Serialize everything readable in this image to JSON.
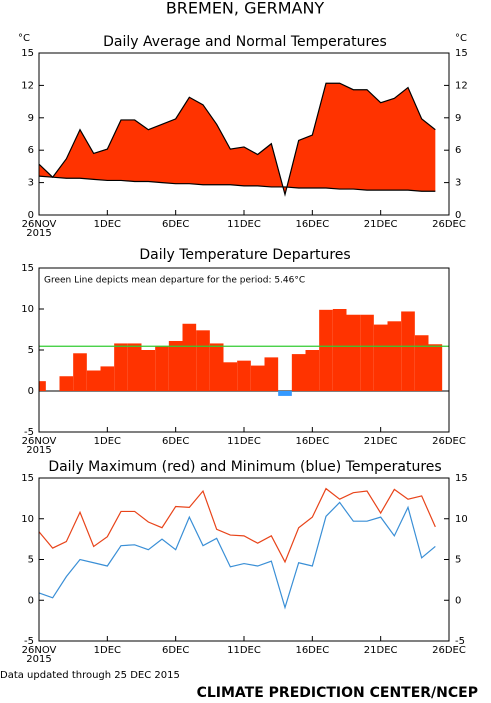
{
  "page_title": "BREMEN, GERMANY",
  "chart_data": [
    {
      "type": "area",
      "title": "Daily Average and Normal Temperatures",
      "ylabel": "°C",
      "y2label": "°C",
      "fill_color": "#ff3300",
      "year": "2015",
      "xlim": [
        0,
        30
      ],
      "xticks": [
        {
          "value": 0,
          "label": "26NOV"
        },
        {
          "value": 5,
          "label": "1DEC"
        },
        {
          "value": 10,
          "label": "6DEC"
        },
        {
          "value": 15,
          "label": "11DEC"
        },
        {
          "value": 20,
          "label": "16DEC"
        },
        {
          "value": 25,
          "label": "21DEC"
        },
        {
          "value": 30,
          "label": "26DEC"
        }
      ],
      "ylim": [
        0,
        15
      ],
      "yticks": [
        0,
        3,
        6,
        9,
        12,
        15
      ],
      "y2lim": [
        0,
        15
      ],
      "y2ticks": [
        0,
        3,
        6,
        9,
        12,
        15
      ],
      "series": [
        {
          "color": "#000000",
          "values": [
            4.7,
            3.5,
            5.2,
            7.9,
            5.7,
            6.1,
            8.8,
            8.8,
            7.9,
            8.4,
            8.9,
            10.9,
            10.2,
            8.4,
            6.1,
            6.3,
            5.6,
            6.6,
            1.9,
            6.9,
            7.4,
            12.2,
            12.2,
            11.6,
            11.6,
            10.4,
            10.8,
            11.8,
            8.9,
            7.9
          ]
        },
        {
          "color": "#000000",
          "values": [
            3.6,
            3.5,
            3.4,
            3.4,
            3.3,
            3.2,
            3.2,
            3.1,
            3.1,
            3.0,
            2.9,
            2.9,
            2.8,
            2.8,
            2.8,
            2.7,
            2.7,
            2.6,
            2.6,
            2.5,
            2.5,
            2.5,
            2.4,
            2.4,
            2.3,
            2.3,
            2.3,
            2.3,
            2.2,
            2.2
          ]
        }
      ]
    },
    {
      "type": "bar",
      "title": "Daily Temperature Departures",
      "year": "2015",
      "annotation": "Green Line depicts mean departure for the period: 5.46°C",
      "mean": 5.46,
      "mean_color": "#33cc33",
      "color": "#ff3300",
      "negative_color": "#3399ff",
      "xlim": [
        0,
        30
      ],
      "xticks": [
        {
          "value": 0,
          "label": "26NOV"
        },
        {
          "value": 5,
          "label": "1DEC"
        },
        {
          "value": 10,
          "label": "6DEC"
        },
        {
          "value": 15,
          "label": "11DEC"
        },
        {
          "value": 20,
          "label": "16DEC"
        },
        {
          "value": 25,
          "label": "21DEC"
        },
        {
          "value": 30,
          "label": "26DEC"
        }
      ],
      "ylim": [
        -5,
        15
      ],
      "yticks": [
        -5,
        0,
        5,
        10,
        15
      ],
      "values": [
        1.2,
        0,
        1.8,
        4.6,
        2.5,
        3.0,
        5.8,
        5.8,
        5.0,
        5.5,
        6.1,
        8.2,
        7.4,
        5.8,
        3.5,
        3.7,
        3.1,
        4.1,
        -0.6,
        4.5,
        5.0,
        9.9,
        10.0,
        9.3,
        9.3,
        8.1,
        8.5,
        9.7,
        6.8,
        5.7
      ]
    },
    {
      "type": "line",
      "title": "Daily Maximum (red) and Minimum (blue) Temperatures",
      "year": "2015",
      "xlim": [
        0,
        30
      ],
      "xticks": [
        {
          "value": 0,
          "label": "26NOV"
        },
        {
          "value": 5,
          "label": "1DEC"
        },
        {
          "value": 10,
          "label": "6DEC"
        },
        {
          "value": 15,
          "label": "11DEC"
        },
        {
          "value": 20,
          "label": "16DEC"
        },
        {
          "value": 25,
          "label": "21DEC"
        },
        {
          "value": 30,
          "label": "26DEC"
        }
      ],
      "ylim": [
        -5,
        15
      ],
      "yticks": [
        -5,
        0,
        5,
        10,
        15
      ],
      "y2lim": [
        -5,
        15
      ],
      "y2ticks": [
        -5,
        0,
        5,
        10,
        15
      ],
      "series": [
        {
          "color": "#e8441a",
          "values": [
            8.4,
            6.4,
            7.2,
            10.8,
            6.6,
            7.8,
            10.9,
            10.9,
            9.6,
            8.9,
            11.5,
            11.4,
            13.4,
            8.7,
            8.0,
            7.9,
            7.0,
            7.9,
            4.7,
            8.9,
            10.2,
            13.7,
            12.4,
            13.2,
            13.4,
            10.7,
            13.6,
            12.4,
            12.8,
            9.0
          ]
        },
        {
          "color": "#3a8fd6",
          "values": [
            0.9,
            0.3,
            2.9,
            5.0,
            4.6,
            4.2,
            6.7,
            6.8,
            6.2,
            7.5,
            6.2,
            10.2,
            6.7,
            7.6,
            4.1,
            4.5,
            4.2,
            4.8,
            -0.9,
            4.6,
            4.2,
            10.3,
            12.0,
            9.7,
            9.7,
            10.2,
            7.9,
            11.4,
            5.2,
            6.6
          ]
        }
      ]
    }
  ],
  "footer": {
    "note": "Data updated through 25 DEC 2015",
    "credit": "CLIMATE PREDICTION CENTER/NCEP"
  }
}
